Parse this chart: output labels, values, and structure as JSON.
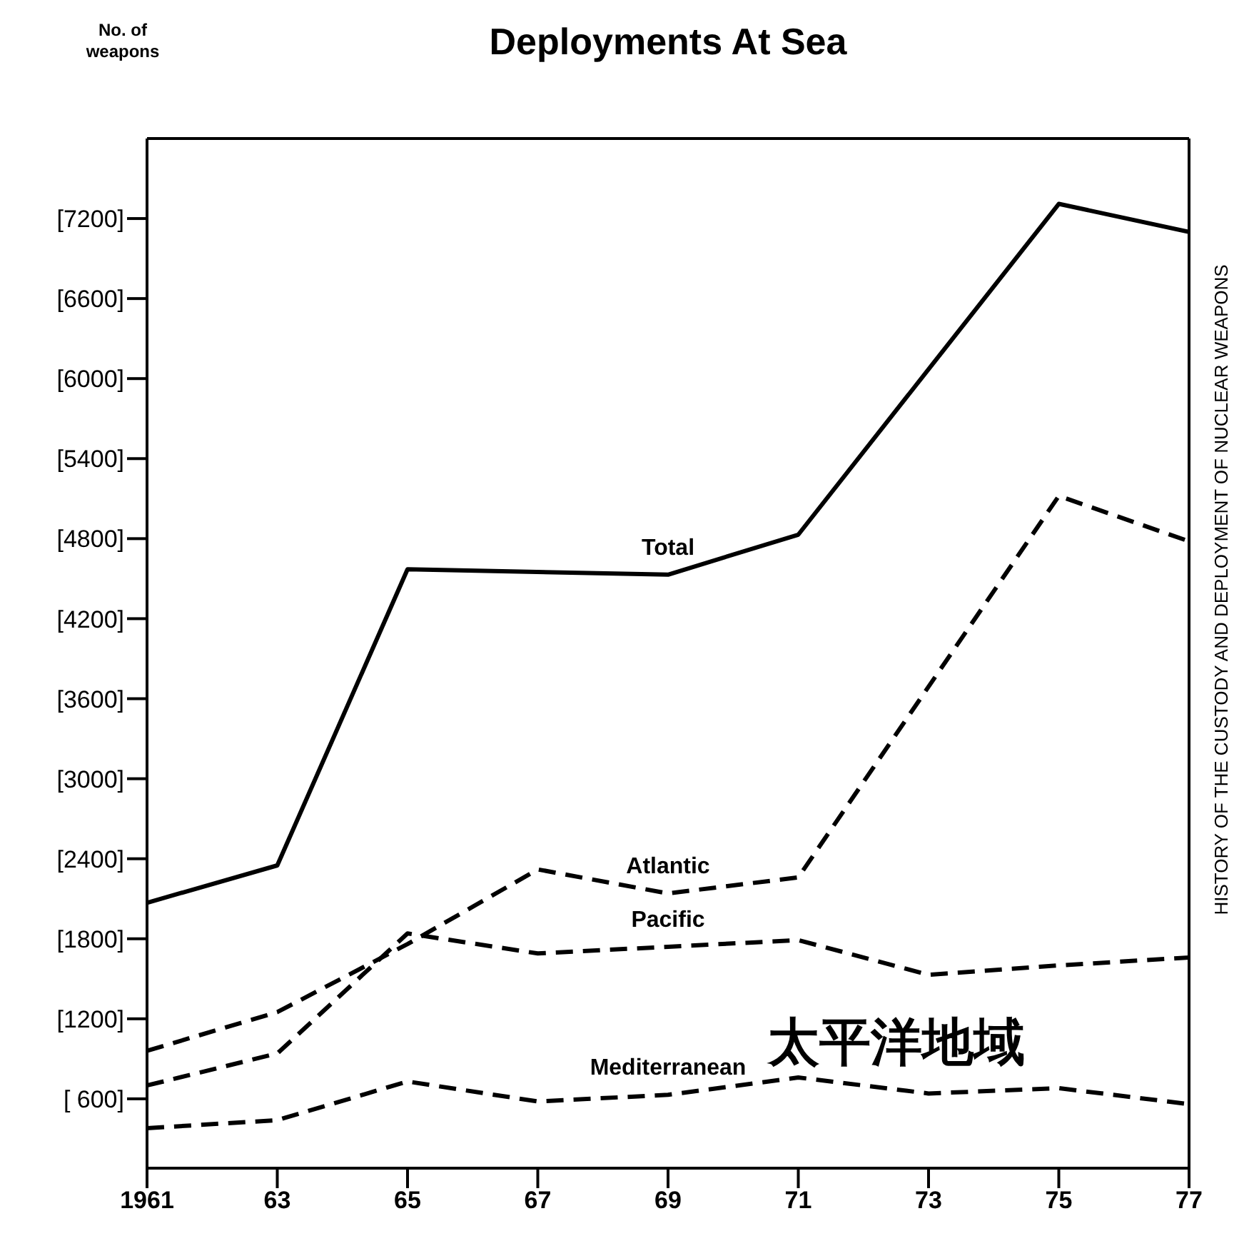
{
  "chart_data": {
    "type": "line",
    "title": "Deployments At Sea",
    "annotations": [
      "No. of weapons",
      "太平洋地域",
      "HISTORY OF THE CUSTODY AND DEPLOYMENT OF NUCLEAR WEAPONS"
    ],
    "series": [
      {
        "name": "Total",
        "color": "#000000",
        "line_style": "solid",
        "x": [
          1961,
          1963,
          1965,
          1969,
          1971,
          1975,
          1977
        ],
        "values": [
          2070,
          2350,
          4570,
          4530,
          4830,
          7310,
          7100
        ]
      },
      {
        "name": "Atlantic",
        "color": "#000000",
        "line_style": "dashed",
        "x": [
          1961,
          1963,
          1965,
          1967,
          1969,
          1971,
          1975,
          1977
        ],
        "values": [
          960,
          1250,
          1760,
          2320,
          2140,
          2260,
          5120,
          4780
        ]
      },
      {
        "name": "Pacific",
        "color": "#000000",
        "line_style": "dashed",
        "x": [
          1961,
          1963,
          1965,
          1967,
          1969,
          1971,
          1973,
          1975,
          1977
        ],
        "values": [
          700,
          940,
          1840,
          1690,
          1740,
          1790,
          1530,
          1600,
          1660
        ]
      },
      {
        "name": "Mediterranean",
        "color": "#000000",
        "line_style": "dashed",
        "x": [
          1961,
          1963,
          1965,
          1967,
          1969,
          1971,
          1973,
          1975,
          1977
        ],
        "values": [
          380,
          440,
          730,
          580,
          630,
          760,
          640,
          680,
          560
        ]
      }
    ],
    "xlim": [
      1961,
      1977
    ],
    "xticks": [
      {
        "value": 1961,
        "label": "1961"
      },
      {
        "value": 1963,
        "label": "63"
      },
      {
        "value": 1965,
        "label": "65"
      },
      {
        "value": 1967,
        "label": "67"
      },
      {
        "value": 1969,
        "label": "69"
      },
      {
        "value": 1971,
        "label": "71"
      },
      {
        "value": 1973,
        "label": "73"
      },
      {
        "value": 1975,
        "label": "75"
      },
      {
        "value": 1977,
        "label": "77"
      }
    ],
    "ylim": [
      80,
      7800
    ],
    "yticks": [
      {
        "value": 600,
        "label": "[ 600]"
      },
      {
        "value": 1200,
        "label": "[1200]"
      },
      {
        "value": 1800,
        "label": "[1800]"
      },
      {
        "value": 2400,
        "label": "[2400]"
      },
      {
        "value": 3000,
        "label": "[3000]"
      },
      {
        "value": 3600,
        "label": "[3600]"
      },
      {
        "value": 4200,
        "label": "[4200]"
      },
      {
        "value": 4800,
        "label": "[4800]"
      },
      {
        "value": 5400,
        "label": "[5400]"
      },
      {
        "value": 6000,
        "label": "[6000]"
      },
      {
        "value": 6600,
        "label": "[6600]"
      },
      {
        "value": 7200,
        "label": "[7200]"
      }
    ],
    "grid": false,
    "legend": false,
    "marker": "none"
  }
}
